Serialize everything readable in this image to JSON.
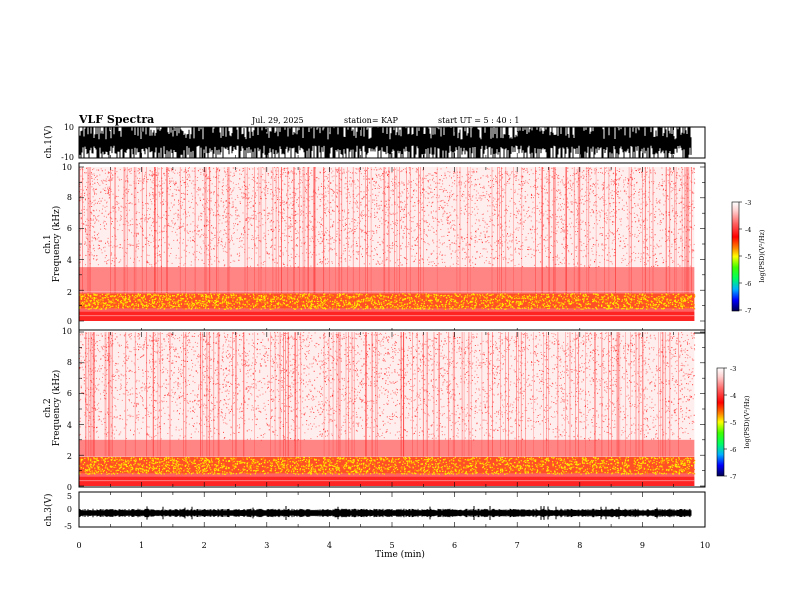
{
  "header": {
    "title": "VLF Spectra",
    "date": "Jul. 29, 2025",
    "station": "station= KAP",
    "start_time": "start  UT  =   5  : 40 : 1"
  },
  "chart_data": [
    {
      "type": "line",
      "id": "ch1_waveform",
      "ylabel": "ch.1(V)",
      "ylim": [
        -10,
        10
      ],
      "yticks": [
        "10",
        "-10"
      ],
      "xlim": [
        0,
        10
      ],
      "description_series": "dense clipped broadband waveform"
    },
    {
      "type": "heatmap",
      "id": "ch1_spectrogram",
      "ylabel_lines": [
        "ch.1",
        "Frequency (kHz)"
      ],
      "ylim": [
        0,
        10
      ],
      "yticks": [
        "0",
        "2",
        "4",
        "6",
        "8",
        "10"
      ],
      "xlim": [
        0,
        9.83
      ],
      "bands": [
        {
          "f_low": 0,
          "f_high": 0.8,
          "level": -3.4
        },
        {
          "f_low": 0.8,
          "f_high": 1.8,
          "level": -3.9
        },
        {
          "f_low": 1.8,
          "f_high": 3.5,
          "level": -3.3
        },
        {
          "f_low": 3.5,
          "f_high": 10,
          "level": -2.6
        }
      ]
    },
    {
      "type": "heatmap",
      "id": "ch2_spectrogram",
      "ylabel_lines": [
        "ch.2",
        "Frequency (kHz)"
      ],
      "ylim": [
        0,
        10
      ],
      "yticks": [
        "0",
        "2",
        "4",
        "6",
        "8",
        "10"
      ],
      "xlim": [
        0,
        9.83
      ],
      "bands": [
        {
          "f_low": 0,
          "f_high": 0.8,
          "level": -3.4
        },
        {
          "f_low": 0.8,
          "f_high": 1.9,
          "level": -3.9
        },
        {
          "f_low": 1.9,
          "f_high": 3.0,
          "level": -3.3
        },
        {
          "f_low": 3.0,
          "f_high": 10,
          "level": -2.6
        }
      ]
    },
    {
      "type": "line",
      "id": "ch3_waveform",
      "ylabel": "ch.3(V)",
      "ylim": [
        -5,
        5
      ],
      "yticks": [
        "5",
        "0",
        "-5"
      ],
      "xlim": [
        0,
        10
      ],
      "xticks": [
        "0",
        "1",
        "2",
        "3",
        "4",
        "5",
        "6",
        "7",
        "8",
        "9",
        "10"
      ],
      "xlabel": "Time (min)",
      "center_value": -1.0
    }
  ],
  "colorbar": {
    "label": "log(PSD)(V²/Hz)",
    "range": [
      -7,
      -3
    ],
    "ticks": [
      "-3",
      "-4",
      "-5",
      "-6",
      "-7"
    ],
    "colors": [
      "#000050",
      "#0000ff",
      "#00b0ff",
      "#00ff60",
      "#40ff00",
      "#ffff00",
      "#ff8000",
      "#ff0000",
      "#ff6060",
      "#ffd0d0",
      "#ffffff"
    ]
  }
}
